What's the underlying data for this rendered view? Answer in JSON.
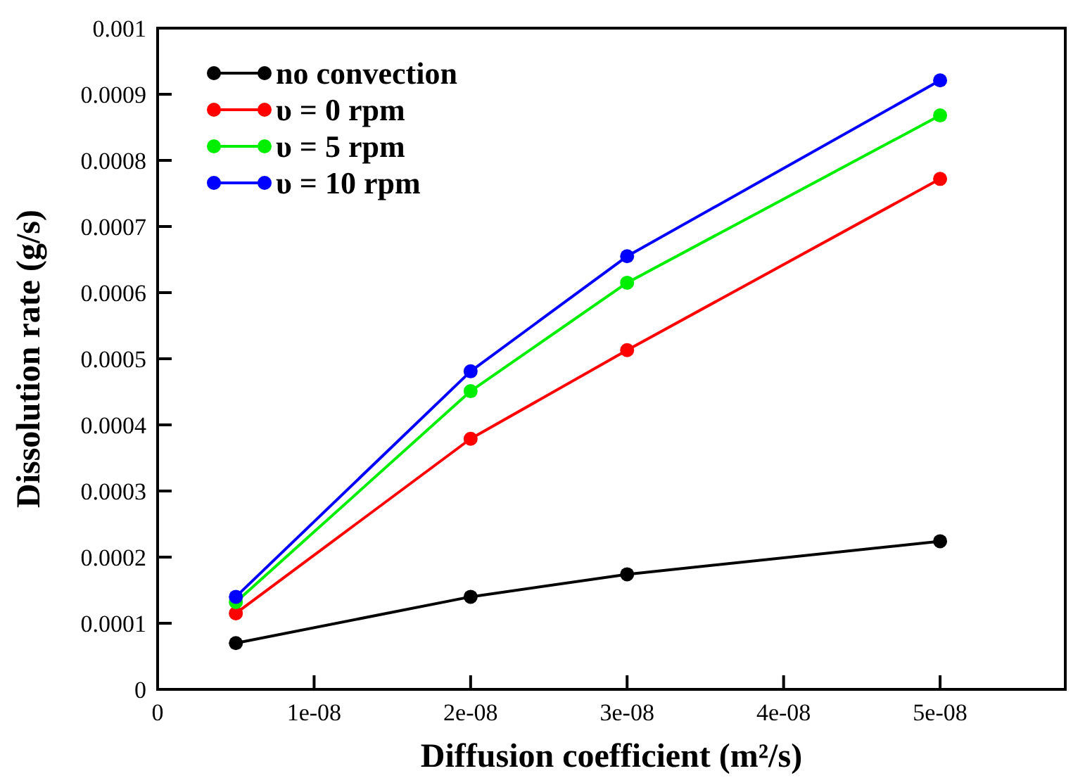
{
  "chart_data": {
    "type": "line",
    "xlabel": "Diffusion coefficient (m²/s)",
    "ylabel": "Dissolution rate (g/s)",
    "x": [
      5e-09,
      2e-08,
      3e-08,
      5e-08
    ],
    "series": [
      {
        "name": "no convection",
        "color": "#000000",
        "values": [
          7e-05,
          0.00014,
          0.000174,
          0.000224
        ]
      },
      {
        "name": "υ = 0 rpm",
        "color": "#ff0000",
        "values": [
          0.000115,
          0.000379,
          0.000513,
          0.000772
        ]
      },
      {
        "name": "υ = 5 rpm",
        "color": "#00ee00",
        "values": [
          0.000132,
          0.000451,
          0.000615,
          0.000868
        ]
      },
      {
        "name": "υ = 10 rpm",
        "color": "#0000ff",
        "values": [
          0.00014,
          0.000481,
          0.000655,
          0.000921
        ]
      }
    ],
    "xlim": [
      0,
      5.8e-08
    ],
    "xticks": [
      0,
      {
        "value": 1e-08,
        "label": "1e-08"
      },
      {
        "value": 2e-08,
        "label": "2e-08"
      },
      {
        "value": 3e-08,
        "label": "3e-08"
      },
      {
        "value": 4e-08,
        "label": "4e-08"
      },
      {
        "value": 5e-08,
        "label": "5e-08"
      }
    ],
    "ylim": [
      0,
      0.001
    ],
    "yticks": [
      0,
      0.0001,
      0.0002,
      0.0003,
      0.0004,
      0.0005,
      0.0006,
      0.0007,
      0.0008,
      0.0009,
      0.001
    ],
    "marker": "circle",
    "legend": "top left",
    "grid": false
  }
}
